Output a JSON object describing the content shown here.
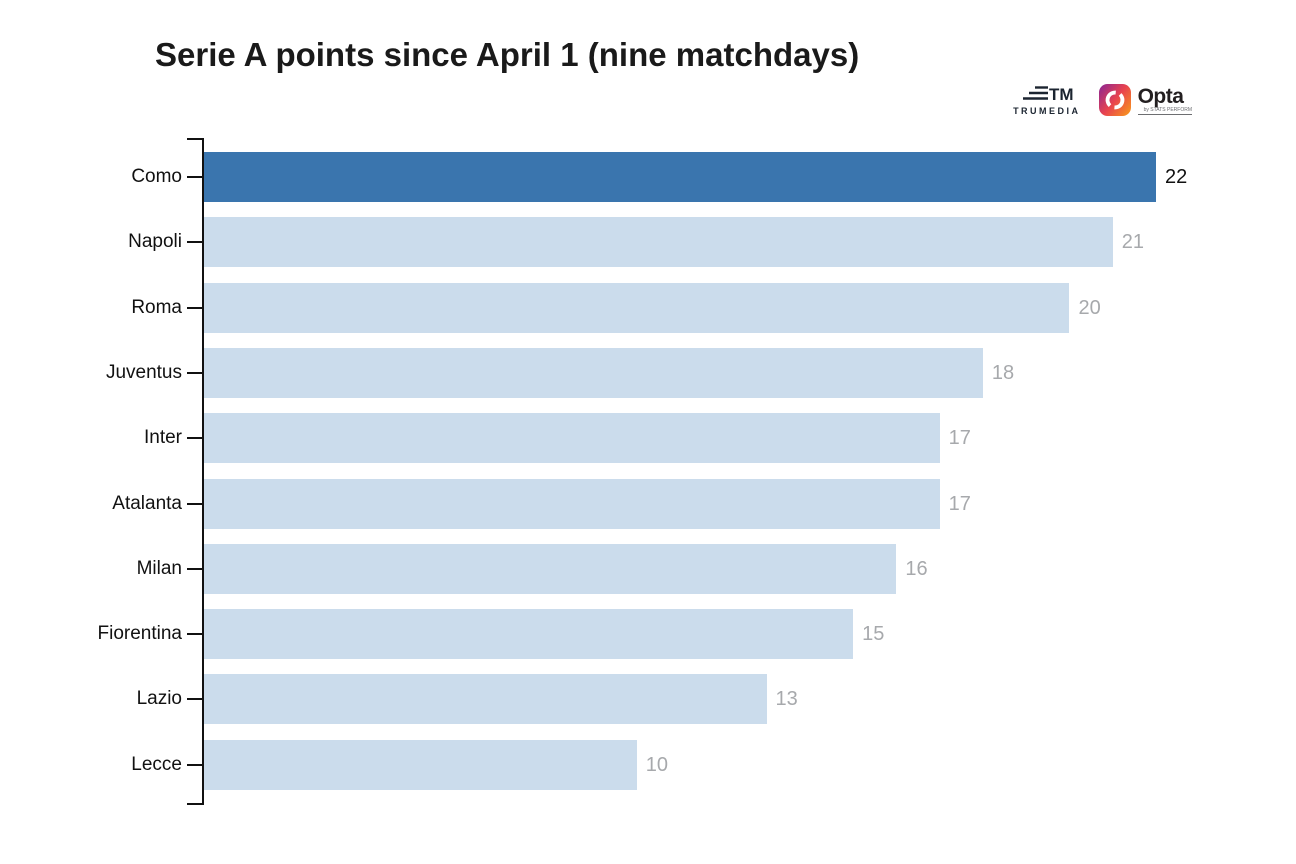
{
  "title": "Serie A points since April 1 (nine matchdays)",
  "logos": {
    "trumedia_label": "TRUMEDIA",
    "opta_label": "Opta",
    "opta_sub": "by STATS PERFORM"
  },
  "colors": {
    "bar": "#cbdcec",
    "highlight_bar": "#3a75ae",
    "value_label": "#a7a9ac",
    "highlight_value_label": "#111111",
    "category_label": "#111111",
    "axis": "#111111",
    "title": "#1a1a1a",
    "opta_gradient": [
      "#92278f",
      "#e8434f",
      "#f7941e"
    ],
    "trumedia_mark": "#1b2430"
  },
  "chart_data": {
    "type": "bar",
    "orientation": "horizontal",
    "title": "Serie A points since April 1 (nine matchdays)",
    "categories": [
      "Como",
      "Napoli",
      "Roma",
      "Juventus",
      "Inter",
      "Atalanta",
      "Milan",
      "Fiorentina",
      "Lazio",
      "Lecce"
    ],
    "values": [
      22,
      21,
      20,
      18,
      17,
      17,
      16,
      15,
      13,
      10
    ],
    "highlighted_category": "Como",
    "value_labels_shown": true,
    "xlim": [
      0,
      22
    ],
    "xlabel": "",
    "ylabel": "",
    "grid": false,
    "legend": false
  }
}
